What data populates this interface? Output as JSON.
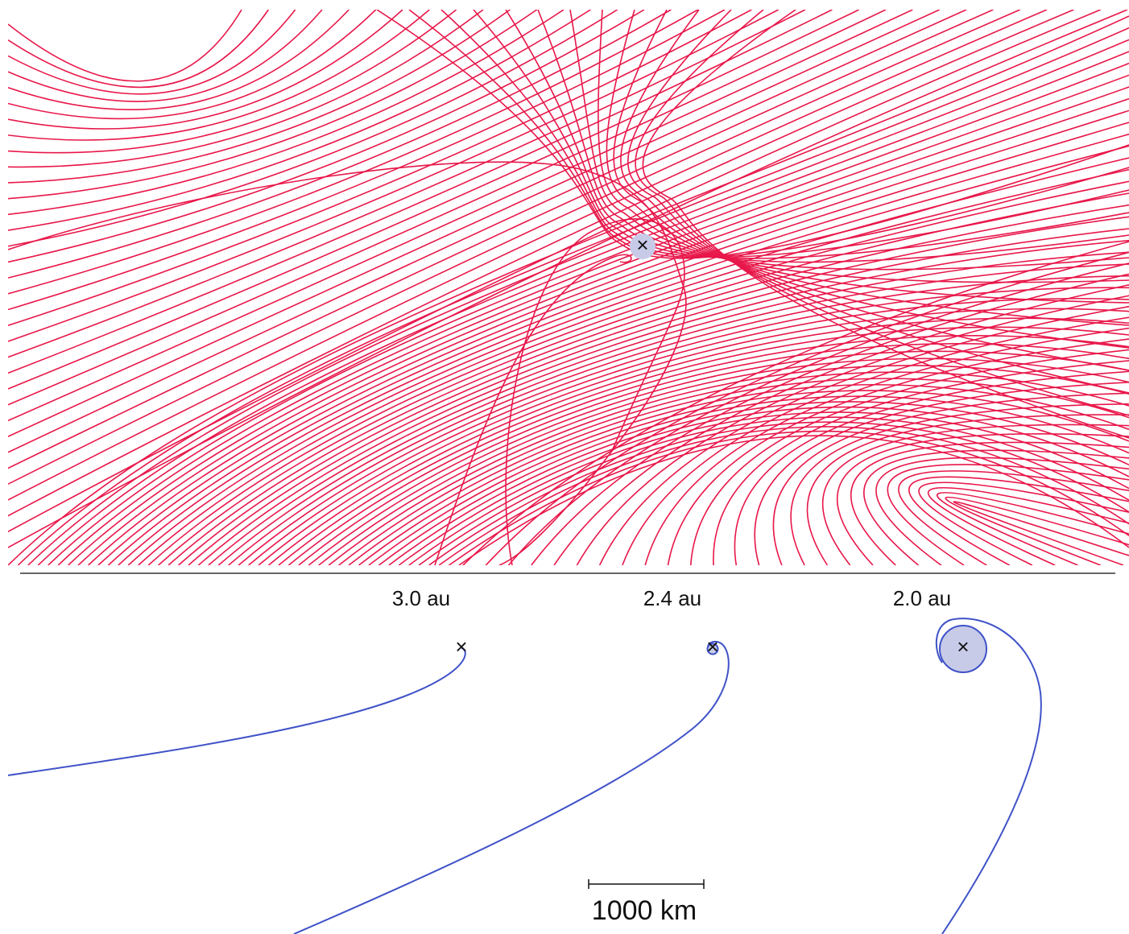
{
  "colors": {
    "trajectory_lines": "#e8174a",
    "orbit_lines": "#3f52c8",
    "nucleus_fill": "#c8cbe8",
    "nucleus_marker": "#111111",
    "divider": "#333333"
  },
  "top_panel": {
    "content": "fan of curved trajectories around a central nucleus",
    "nucleus_marker": "×"
  },
  "bottom_panel": {
    "columns": [
      {
        "label": "3.0 au",
        "marker": "×"
      },
      {
        "label": "2.4 au",
        "marker": "×"
      },
      {
        "label": "2.0 au",
        "marker": "×"
      }
    ],
    "scale_bar": {
      "label": "1000 km"
    }
  }
}
